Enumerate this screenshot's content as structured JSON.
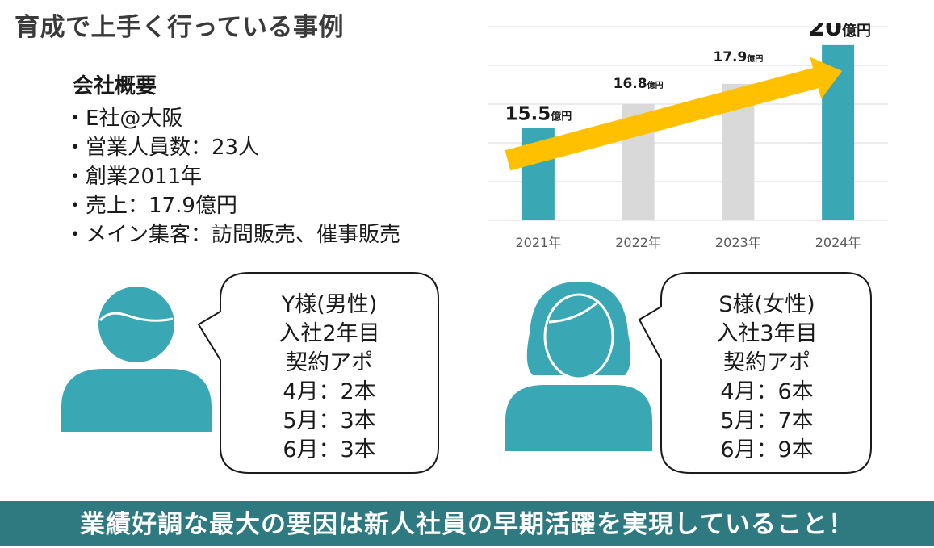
{
  "title": "育成で上手く行っている事例",
  "overview": {
    "heading": "会社概要",
    "items": [
      "・E社@大阪",
      "・営業人員数：23人",
      "・創業2011年",
      "・売上：17.9億円",
      "・メイン集客：訪問販売、催事販売"
    ]
  },
  "chart_data": {
    "type": "bar",
    "title": "",
    "xlabel": "",
    "ylabel": "",
    "categories": [
      "2021年",
      "2022年",
      "2023年",
      "2024年"
    ],
    "values": [
      15.5,
      16.8,
      17.9,
      20
    ],
    "value_labels": [
      {
        "number": "15.5",
        "unit": "億円"
      },
      {
        "number": "16.8",
        "unit": "億円"
      },
      {
        "number": "17.9",
        "unit": "億円"
      },
      {
        "number": "20",
        "unit": "億円"
      }
    ],
    "ylim": [
      10.5,
      21
    ],
    "grid": true,
    "bar_colors": [
      "#39a7b4",
      "#d9d9d9",
      "#d9d9d9",
      "#39a7b4"
    ],
    "trend_arrow_color": "#ffc000"
  },
  "cases": [
    {
      "icon": "male-person-icon",
      "lines": [
        "Y様(男性)",
        "入社2年目",
        "契約アポ",
        "4月：2本",
        "5月：3本",
        "6月：3本"
      ]
    },
    {
      "icon": "female-person-icon",
      "lines": [
        "S様(女性)",
        "入社3年目",
        "契約アポ",
        "4月：6本",
        "5月：7本",
        "6月：9本"
      ]
    }
  ],
  "colors": {
    "accent": "#39a7b4",
    "banner": "#2f7a81",
    "arrow": "#ffc000",
    "muted_bar": "#d9d9d9"
  },
  "banner": "業績好調な最大の要因は新人社員の早期活躍を実現していること！"
}
